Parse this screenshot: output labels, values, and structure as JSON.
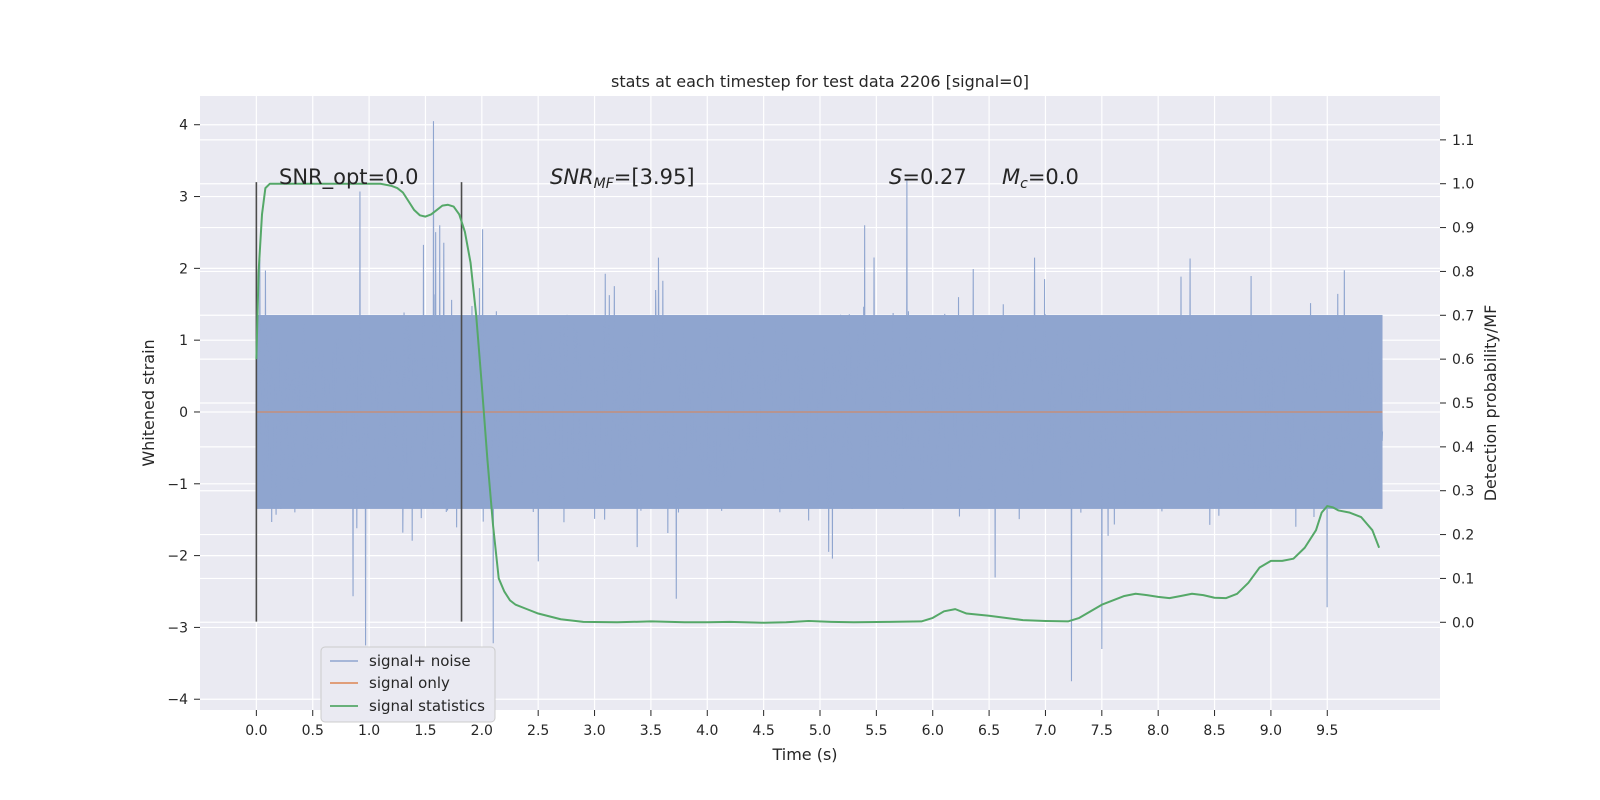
{
  "chart_data": {
    "type": "line",
    "title": "stats at each timestep for test data 2206 [signal=0]",
    "xlabel": "Time (s)",
    "ylabel_left": "Whitened strain",
    "ylabel_right": "Detection probability/MF",
    "xlim": [
      -0.5,
      10.5
    ],
    "ylim_left": [
      -4.15,
      4.4
    ],
    "ylim_right": [
      -0.2,
      1.2
    ],
    "x_ticks": [
      "0.0",
      "0.5",
      "1.0",
      "1.5",
      "2.0",
      "2.5",
      "3.0",
      "3.5",
      "4.0",
      "4.5",
      "5.0",
      "5.5",
      "6.0",
      "6.5",
      "7.0",
      "7.5",
      "8.0",
      "8.5",
      "9.0",
      "9.5"
    ],
    "y_left_ticks": [
      "4",
      "3",
      "2",
      "1",
      "0",
      "−1",
      "−2",
      "−3",
      "−4"
    ],
    "y_right_ticks": [
      "1.1",
      "1.0",
      "0.9",
      "0.8",
      "0.7",
      "0.6",
      "0.5",
      "0.4",
      "0.3",
      "0.2",
      "0.1",
      "0.0"
    ],
    "grid": true,
    "legend_position": "lower-left",
    "background": "#eaeaf2",
    "annotations": {
      "snr_opt": "SNR_opt=0.0",
      "snr_mf_main": "SNR",
      "snr_mf_sub": "MF",
      "snr_mf_value": "=[3.95]",
      "s_main": "S",
      "s_value": "=0.27",
      "mc_main": "M",
      "mc_sub": "c",
      "mc_value": "=0.0"
    },
    "window_markers_x": [
      0.0,
      1.82
    ],
    "window_markers_ylim": [
      -2.92,
      3.2
    ],
    "series": [
      {
        "name": "signal+ noise",
        "axis": "left",
        "color": "#8fa5cf",
        "style": "dense noise",
        "x_range": [
          0.0,
          9.99
        ],
        "typical_amplitude": 1.35,
        "peaks": [
          {
            "x": 1.57,
            "y": 4.05
          },
          {
            "x": 5.77,
            "y": 3.23
          },
          {
            "x": 0.92,
            "y": 3.07
          },
          {
            "x": 7.23,
            "y": -3.75
          },
          {
            "x": 7.5,
            "y": -3.3
          },
          {
            "x": 0.97,
            "y": -3.25
          },
          {
            "x": 2.1,
            "y": -3.22
          },
          {
            "x": 9.5,
            "y": -2.72
          }
        ]
      },
      {
        "name": "signal only",
        "axis": "left",
        "color": "#dd8452",
        "x": [
          0.0,
          9.99
        ],
        "y": [
          0.0,
          0.0
        ]
      },
      {
        "name": "signal statistics",
        "axis": "right",
        "color": "#55a868",
        "x": [
          0.0,
          0.02,
          0.05,
          0.08,
          0.12,
          0.15,
          0.2,
          0.3,
          0.5,
          0.8,
          1.0,
          1.1,
          1.2,
          1.25,
          1.3,
          1.35,
          1.4,
          1.45,
          1.5,
          1.55,
          1.6,
          1.65,
          1.7,
          1.75,
          1.8,
          1.85,
          1.9,
          1.95,
          2.0,
          2.05,
          2.1,
          2.15,
          2.2,
          2.25,
          2.3,
          2.4,
          2.5,
          2.7,
          2.9,
          3.2,
          3.5,
          3.8,
          4.0,
          4.2,
          4.5,
          4.7,
          4.9,
          5.1,
          5.3,
          5.6,
          5.9,
          6.0,
          6.1,
          6.2,
          6.3,
          6.5,
          6.8,
          7.0,
          7.2,
          7.3,
          7.5,
          7.7,
          7.8,
          7.9,
          8.0,
          8.1,
          8.2,
          8.3,
          8.4,
          8.5,
          8.6,
          8.7,
          8.8,
          8.9,
          9.0,
          9.1,
          9.2,
          9.3,
          9.4,
          9.45,
          9.5,
          9.55,
          9.6,
          9.7,
          9.8,
          9.85,
          9.9,
          9.93,
          9.96
        ],
        "y": [
          0.6,
          0.8,
          0.93,
          0.99,
          1.0,
          1.0,
          1.0,
          1.0,
          1.0,
          1.0,
          1.0,
          1.0,
          0.995,
          0.99,
          0.98,
          0.96,
          0.94,
          0.928,
          0.925,
          0.93,
          0.94,
          0.95,
          0.952,
          0.948,
          0.93,
          0.89,
          0.82,
          0.7,
          0.54,
          0.37,
          0.22,
          0.1,
          0.07,
          0.05,
          0.04,
          0.03,
          0.02,
          0.007,
          0.001,
          0.0,
          0.002,
          0.0,
          0.0,
          0.001,
          -0.001,
          0.0,
          0.003,
          0.001,
          0.0,
          0.001,
          0.002,
          0.01,
          0.025,
          0.03,
          0.02,
          0.015,
          0.005,
          0.003,
          0.002,
          0.01,
          0.04,
          0.06,
          0.065,
          0.062,
          0.058,
          0.055,
          0.06,
          0.065,
          0.062,
          0.056,
          0.055,
          0.065,
          0.09,
          0.125,
          0.14,
          0.14,
          0.145,
          0.17,
          0.21,
          0.25,
          0.265,
          0.262,
          0.255,
          0.25,
          0.24,
          0.225,
          0.21,
          0.19,
          0.17
        ]
      }
    ]
  }
}
